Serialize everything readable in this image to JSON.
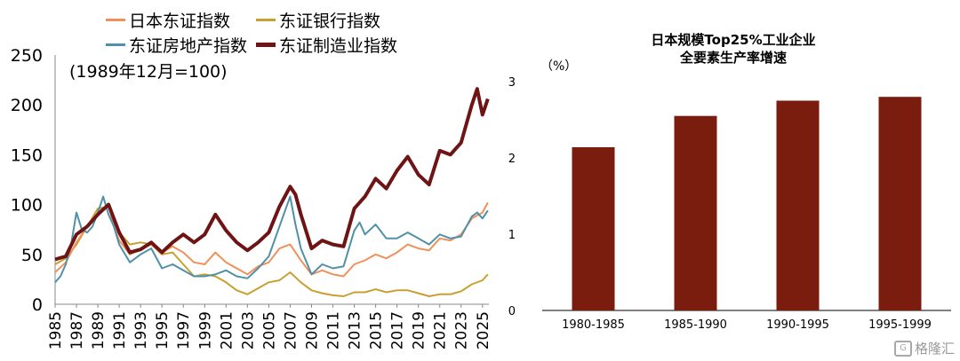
{
  "legend": {
    "nikkei": "日本东证指数",
    "bank": "东证银行指数",
    "realestate": "东证房地产指数",
    "manufacturing": "东证制造业指数"
  },
  "left_note": "(1989年12月=100)",
  "right_title_line1": "日本规模Top25%工业企业",
  "right_title_line2": "全要素生产率增速",
  "right_unit": "（%）",
  "watermark": "格隆汇",
  "colors": {
    "nikkei": "#f0905a",
    "bank": "#c8a032",
    "realestate": "#4f91a8",
    "manufacturing": "#6e1414",
    "bar": "#7a1c0e"
  },
  "chart_data": [
    {
      "type": "line",
      "title": "",
      "xlabel": "",
      "ylabel": "",
      "ylim": [
        0,
        250
      ],
      "xlim": [
        1985,
        2025.6
      ],
      "yticks": [
        "0",
        "50",
        "100",
        "150",
        "200",
        "250"
      ],
      "xticks": [
        "1985",
        "1987",
        "1989",
        "1991",
        "1993",
        "1995",
        "1997",
        "1999",
        "2001",
        "2003",
        "2005",
        "2007",
        "2009",
        "2011",
        "2013",
        "2015",
        "2017",
        "2019",
        "2021",
        "2023",
        "2025"
      ],
      "legend_position": "top-left",
      "series": [
        {
          "name": "日本东证指数",
          "key": "nikkei",
          "points": [
            [
              1985,
              32
            ],
            [
              1986,
              42
            ],
            [
              1987,
              62
            ],
            [
              1988,
              78
            ],
            [
              1989,
              92
            ],
            [
              1990,
              100
            ],
            [
              1990.5,
              78
            ],
            [
              1991,
              64
            ],
            [
              1992,
              50
            ],
            [
              1993,
              55
            ],
            [
              1994,
              60
            ],
            [
              1995,
              52
            ],
            [
              1996,
              58
            ],
            [
              1997,
              52
            ],
            [
              1998,
              42
            ],
            [
              1999,
              40
            ],
            [
              2000,
              52
            ],
            [
              2001,
              42
            ],
            [
              2002,
              36
            ],
            [
              2003,
              30
            ],
            [
              2004,
              38
            ],
            [
              2005,
              42
            ],
            [
              2006,
              56
            ],
            [
              2007,
              60
            ],
            [
              2008,
              44
            ],
            [
              2009,
              30
            ],
            [
              2010,
              34
            ],
            [
              2011,
              30
            ],
            [
              2012,
              28
            ],
            [
              2013,
              40
            ],
            [
              2014,
              44
            ],
            [
              2015,
              50
            ],
            [
              2016,
              46
            ],
            [
              2017,
              52
            ],
            [
              2018,
              60
            ],
            [
              2019,
              56
            ],
            [
              2020,
              54
            ],
            [
              2021,
              66
            ],
            [
              2022,
              64
            ],
            [
              2023,
              70
            ],
            [
              2024,
              86
            ],
            [
              2025,
              92
            ],
            [
              2025.5,
              102
            ]
          ]
        },
        {
          "name": "东证银行指数",
          "key": "bank",
          "points": [
            [
              1985,
              40
            ],
            [
              1986,
              46
            ],
            [
              1987,
              60
            ],
            [
              1988,
              78
            ],
            [
              1989,
              96
            ],
            [
              1990,
              98
            ],
            [
              1991,
              72
            ],
            [
              1992,
              60
            ],
            [
              1993,
              62
            ],
            [
              1994,
              60
            ],
            [
              1995,
              50
            ],
            [
              1996,
              52
            ],
            [
              1997,
              40
            ],
            [
              1998,
              28
            ],
            [
              1999,
              30
            ],
            [
              2000,
              28
            ],
            [
              2001,
              22
            ],
            [
              2002,
              14
            ],
            [
              2003,
              10
            ],
            [
              2004,
              16
            ],
            [
              2005,
              22
            ],
            [
              2006,
              24
            ],
            [
              2007,
              32
            ],
            [
              2008,
              22
            ],
            [
              2009,
              14
            ],
            [
              2010,
              11
            ],
            [
              2011,
              9
            ],
            [
              2012,
              8
            ],
            [
              2013,
              12
            ],
            [
              2014,
              12
            ],
            [
              2015,
              15
            ],
            [
              2016,
              12
            ],
            [
              2017,
              14
            ],
            [
              2018,
              14
            ],
            [
              2019,
              11
            ],
            [
              2020,
              8
            ],
            [
              2021,
              10
            ],
            [
              2022,
              10
            ],
            [
              2023,
              13
            ],
            [
              2024,
              20
            ],
            [
              2025,
              24
            ],
            [
              2025.5,
              30
            ]
          ]
        },
        {
          "name": "东证房地产指数",
          "key": "realestate",
          "points": [
            [
              1985,
              22
            ],
            [
              1985.5,
              28
            ],
            [
              1986,
              40
            ],
            [
              1986.5,
              60
            ],
            [
              1987,
              92
            ],
            [
              1987.5,
              75
            ],
            [
              1988,
              72
            ],
            [
              1988.5,
              78
            ],
            [
              1989,
              92
            ],
            [
              1989.5,
              108
            ],
            [
              1990,
              90
            ],
            [
              1990.5,
              78
            ],
            [
              1991,
              60
            ],
            [
              1992,
              42
            ],
            [
              1993,
              50
            ],
            [
              1994,
              56
            ],
            [
              1995,
              36
            ],
            [
              1996,
              40
            ],
            [
              1997,
              34
            ],
            [
              1998,
              28
            ],
            [
              1999,
              28
            ],
            [
              2000,
              30
            ],
            [
              2001,
              34
            ],
            [
              2002,
              28
            ],
            [
              2003,
              26
            ],
            [
              2004,
              36
            ],
            [
              2005,
              48
            ],
            [
              2006,
              78
            ],
            [
              2007,
              108
            ],
            [
              2007.5,
              80
            ],
            [
              2008,
              56
            ],
            [
              2009,
              30
            ],
            [
              2010,
              40
            ],
            [
              2011,
              36
            ],
            [
              2012,
              38
            ],
            [
              2013,
              74
            ],
            [
              2013.5,
              82
            ],
            [
              2014,
              70
            ],
            [
              2015,
              80
            ],
            [
              2016,
              66
            ],
            [
              2017,
              66
            ],
            [
              2018,
              72
            ],
            [
              2019,
              66
            ],
            [
              2020,
              60
            ],
            [
              2021,
              70
            ],
            [
              2022,
              66
            ],
            [
              2023,
              68
            ],
            [
              2024,
              88
            ],
            [
              2024.5,
              92
            ],
            [
              2025,
              86
            ],
            [
              2025.5,
              94
            ]
          ]
        },
        {
          "name": "东证制造业指数",
          "key": "manufacturing",
          "points": [
            [
              1985,
              45
            ],
            [
              1986,
              48
            ],
            [
              1987,
              70
            ],
            [
              1988,
              78
            ],
            [
              1989,
              90
            ],
            [
              1990,
              100
            ],
            [
              1991,
              72
            ],
            [
              1992,
              52
            ],
            [
              1993,
              55
            ],
            [
              1994,
              62
            ],
            [
              1995,
              52
            ],
            [
              1996,
              62
            ],
            [
              1997,
              70
            ],
            [
              1998,
              62
            ],
            [
              1999,
              70
            ],
            [
              2000,
              90
            ],
            [
              2001,
              74
            ],
            [
              2002,
              62
            ],
            [
              2003,
              54
            ],
            [
              2004,
              62
            ],
            [
              2005,
              72
            ],
            [
              2006,
              98
            ],
            [
              2007,
              118
            ],
            [
              2007.5,
              110
            ],
            [
              2008,
              90
            ],
            [
              2009,
              56
            ],
            [
              2010,
              64
            ],
            [
              2011,
              60
            ],
            [
              2012,
              58
            ],
            [
              2013,
              96
            ],
            [
              2014,
              108
            ],
            [
              2015,
              126
            ],
            [
              2016,
              116
            ],
            [
              2017,
              134
            ],
            [
              2018,
              148
            ],
            [
              2019,
              130
            ],
            [
              2020,
              120
            ],
            [
              2021,
              154
            ],
            [
              2022,
              150
            ],
            [
              2023,
              162
            ],
            [
              2024,
              200
            ],
            [
              2024.5,
              216
            ],
            [
              2025,
              190
            ],
            [
              2025.5,
              206
            ]
          ]
        }
      ]
    },
    {
      "type": "bar",
      "title": "日本规模Top25%工业企业全要素生产率增速",
      "ylabel": "（%）",
      "ylim": [
        0,
        3
      ],
      "yticks": [
        "0",
        "1",
        "2",
        "3"
      ],
      "categories": [
        "1980-1985",
        "1985-1990",
        "1990-1995",
        "1995-1999"
      ],
      "values": [
        2.14,
        2.55,
        2.75,
        2.8
      ]
    }
  ]
}
